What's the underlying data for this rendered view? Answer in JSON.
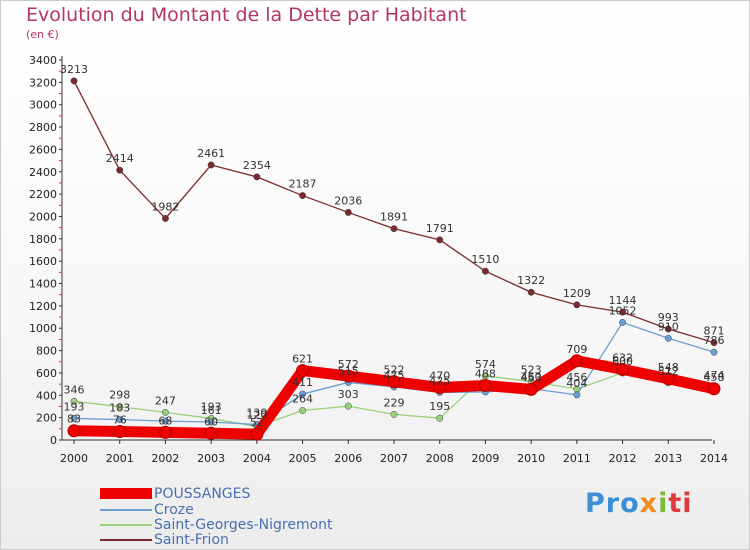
{
  "header": {
    "title": "Evolution du Montant de la Dette par Habitant",
    "unit": "(en €)"
  },
  "logo": {
    "parts": [
      "Pro",
      "x",
      "i",
      "ti"
    ],
    "colors": [
      "#3b8fd6",
      "#f08b1d",
      "#7dbb34",
      "#e23a3a"
    ]
  },
  "chart_data": {
    "type": "line",
    "title": "Evolution du Montant de la Dette par Habitant",
    "ylabel": "(en €)",
    "xlabel": "",
    "x": [
      "2000",
      "2001",
      "2002",
      "2003",
      "2004",
      "2005",
      "2006",
      "2007",
      "2008",
      "2009",
      "2010",
      "2011",
      "2012",
      "2013",
      "2014"
    ],
    "ylim": [
      0,
      3400
    ],
    "yticks": [
      0,
      200,
      400,
      600,
      800,
      1000,
      1200,
      1400,
      1600,
      1800,
      2000,
      2200,
      2400,
      2600,
      2800,
      3000,
      3200,
      3400
    ],
    "grid": false,
    "legend_position": "bottom-left",
    "series": [
      {
        "name": "POUSSANGES",
        "color": "#ee0000",
        "values": [
          83,
          76,
          68,
          60,
          52,
          621,
          572,
          522,
          470,
          488,
          453,
          709,
          632,
          548,
          458
        ],
        "labels": [
          "83",
          "76",
          "68",
          "60",
          "52",
          "621",
          "572",
          "522",
          "470",
          "488",
          "453",
          "709",
          "632",
          "548",
          "458"
        ]
      },
      {
        "name": "Croze",
        "color": "#6a9fd4",
        "values": [
          193,
          183,
          169,
          161,
          139,
          411,
          515,
          475,
          425,
          430,
          460,
          404,
          1052,
          910,
          786
        ],
        "labels": [
          "193",
          "183",
          "",
          "161",
          "139",
          "411",
          "515",
          "475",
          "425",
          "",
          "460",
          "404",
          "1052",
          "910",
          "786"
        ]
      },
      {
        "name": "Saint-Georges-Nigremont",
        "color": "#99d17a",
        "values": [
          346,
          298,
          247,
          193,
          120,
          264,
          303,
          229,
          195,
          574,
          523,
          456,
          600,
          512,
          474
        ],
        "labels": [
          "346",
          "298",
          "247",
          "193",
          "120",
          "264",
          "303",
          "229",
          "195",
          "574",
          "523",
          "456",
          "600",
          "512",
          "474"
        ]
      },
      {
        "name": "Saint-Frion",
        "color": "#7a2a2a",
        "values": [
          3213,
          2414,
          1982,
          2461,
          2354,
          2187,
          2036,
          1891,
          1791,
          1510,
          1322,
          1209,
          1144,
          993,
          871
        ],
        "labels": [
          "3213",
          "2414",
          "1982",
          "2461",
          "2354",
          "2187",
          "2036",
          "1891",
          "1791",
          "1510",
          "1322",
          "1209",
          "1144",
          "993",
          "871"
        ]
      }
    ]
  }
}
